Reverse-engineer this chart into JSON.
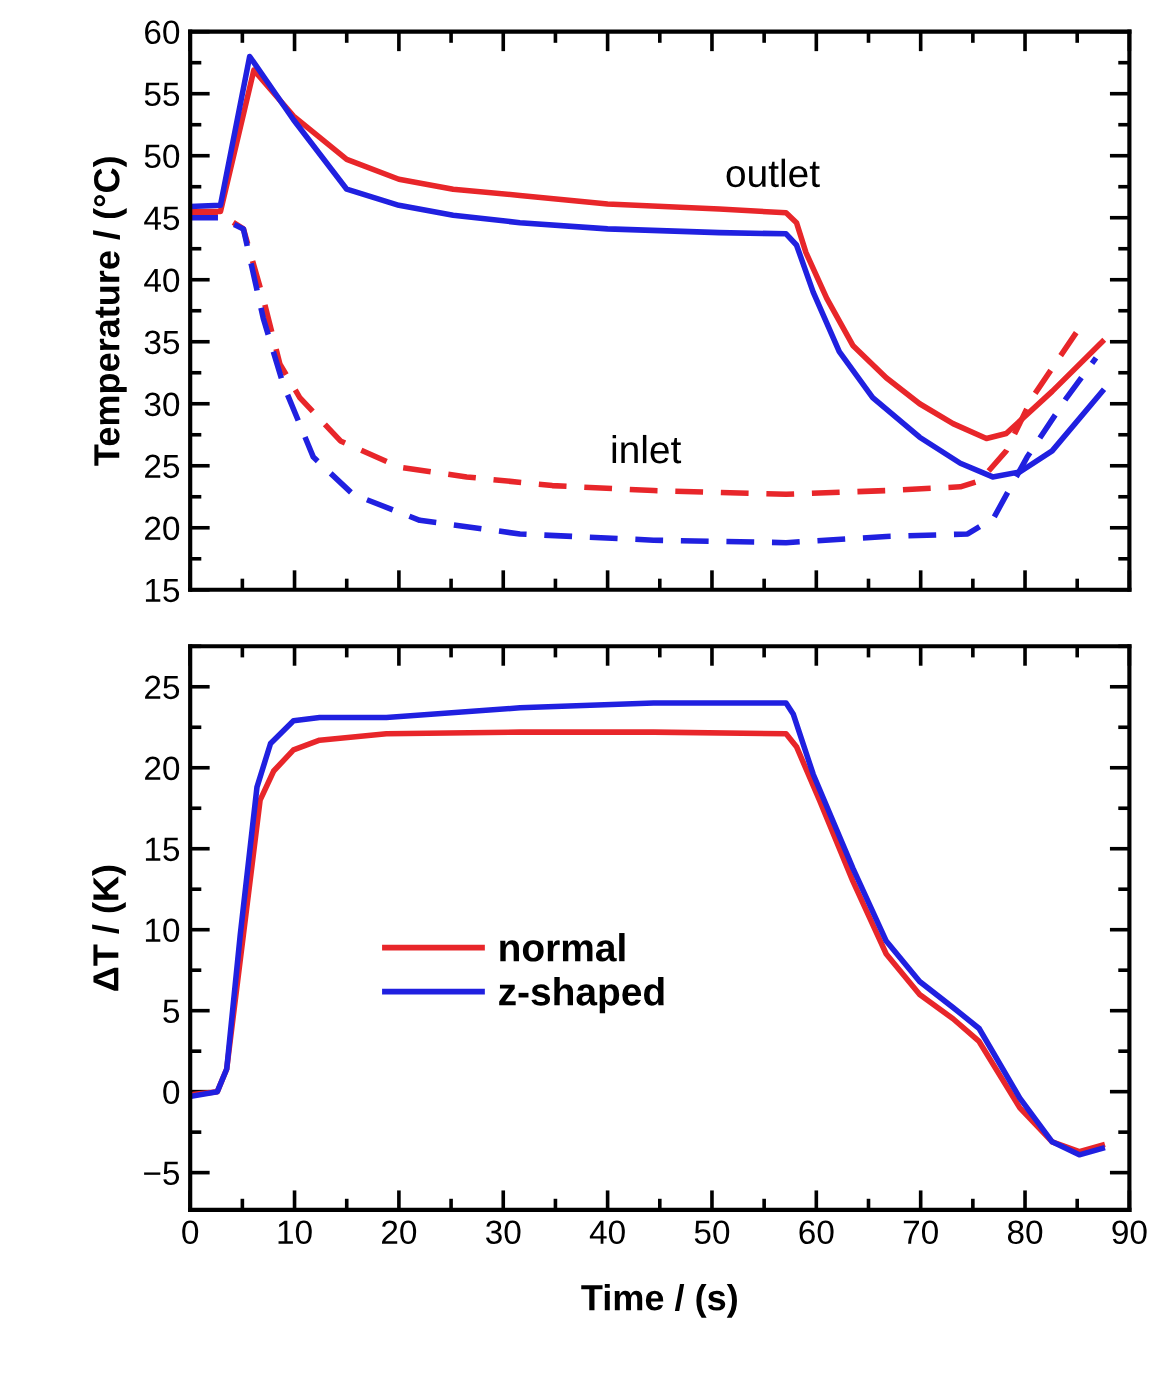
{
  "chart_data": [
    {
      "type": "line",
      "ylabel": "Temperature / (°C)",
      "xlim": [
        0,
        90
      ],
      "ylim": [
        15,
        60
      ],
      "xticks": [
        0,
        10,
        20,
        30,
        40,
        50,
        60,
        70,
        80,
        90
      ],
      "yticks": [
        15,
        20,
        25,
        30,
        35,
        40,
        45,
        50,
        55,
        60
      ],
      "tick_labels": "y",
      "grid": false,
      "legend": false,
      "marker": "none",
      "annotations": [
        "outlet",
        "inlet"
      ],
      "series": [
        {
          "color": "#e8262a",
          "line_style": "solid",
          "x": [
            0,
            2.9,
            6.1,
            9.9,
            15,
            20,
            25.2,
            31.6,
            40,
            50.7,
            57.1,
            58.1,
            59,
            61,
            63.5,
            66.7,
            69.9,
            73.1,
            76.3,
            78.2,
            82.6,
            87.4
          ],
          "values": [
            45.5,
            45.5,
            56.9,
            53.2,
            49.7,
            48.1,
            47.3,
            46.8,
            46.1,
            45.7,
            45.4,
            44.6,
            42.2,
            38.5,
            34.7,
            32.1,
            30,
            28.4,
            27.2,
            27.6,
            31,
            35
          ]
        },
        {
          "color": "#2020e0",
          "line_style": "solid",
          "x": [
            0,
            2.9,
            5.7,
            9.9,
            15,
            20,
            25.2,
            31.6,
            40,
            50.7,
            57.1,
            58.1,
            59.7,
            62.2,
            65.4,
            69.9,
            73.8,
            76.9,
            79.5,
            82.6,
            87.4
          ],
          "values": [
            45.9,
            46,
            58,
            52.9,
            47.3,
            46,
            45.2,
            44.6,
            44.1,
            43.8,
            43.7,
            42.8,
            39,
            34.2,
            30.5,
            27.3,
            25.2,
            24.1,
            24.5,
            26.2,
            31
          ]
        },
        {
          "color": "#e8262a",
          "line_style": "dashed",
          "x": [
            0,
            2.9,
            5.1,
            7,
            8.6,
            10.5,
            14.4,
            20,
            26.5,
            34.7,
            44.4,
            57.1,
            66.7,
            73.8,
            75.7,
            78.2,
            80.7,
            85.2
          ],
          "values": [
            45.4,
            45.3,
            44.1,
            38.5,
            33.2,
            30.5,
            27,
            24.9,
            24.1,
            23.4,
            23,
            22.7,
            23,
            23.3,
            23.8,
            26.2,
            30.5,
            36.1
          ]
        },
        {
          "color": "#2020e0",
          "line_style": "dashed",
          "x": [
            0,
            2.9,
            5.1,
            7,
            8.9,
            11.8,
            15.6,
            22,
            31.6,
            44.4,
            57.1,
            66.7,
            74.5,
            77,
            80.2,
            84,
            86.8
          ],
          "values": [
            45,
            45,
            44.1,
            36.9,
            31.6,
            25.7,
            22.7,
            20.6,
            19.5,
            19,
            18.8,
            19.3,
            19.5,
            20.8,
            25.7,
            30.5,
            33.7
          ]
        }
      ]
    },
    {
      "type": "line",
      "xlabel": "Time / (s)",
      "ylabel": "ΔT / (K)",
      "xlim": [
        0,
        90
      ],
      "ylim": [
        -7.3,
        27.5
      ],
      "xticks": [
        0,
        10,
        20,
        30,
        40,
        50,
        60,
        70,
        80,
        90
      ],
      "yticks": [
        -5,
        0,
        5,
        10,
        15,
        20,
        25
      ],
      "grid": false,
      "legend": "center left",
      "marker": "none",
      "series": [
        {
          "name": "normal",
          "color": "#e8262a",
          "line_style": "solid",
          "x": [
            0,
            2.6,
            3.5,
            5.1,
            6.7,
            8,
            9.9,
            12.4,
            18.8,
            31.6,
            44.4,
            57.1,
            58.1,
            60.3,
            63.5,
            66.7,
            69.9,
            73.1,
            75.6,
            79.5,
            82.6,
            85.2,
            87.4
          ],
          "values": [
            -0.2,
            0,
            1.4,
            9.7,
            18,
            19.8,
            21.1,
            21.7,
            22.1,
            22.2,
            22.2,
            22.1,
            21.3,
            18,
            13,
            8.5,
            6,
            4.5,
            3.1,
            -1,
            -3.1,
            -3.7,
            -3.3
          ]
        },
        {
          "name": "z-shaped",
          "color": "#2020e0",
          "line_style": "solid",
          "x": [
            0,
            2.6,
            3.5,
            4.8,
            6.4,
            7.7,
            9.9,
            12.4,
            18.8,
            31.6,
            44.4,
            57.1,
            57.8,
            59.7,
            63.5,
            66.7,
            69.9,
            73.1,
            75.6,
            79.5,
            82.6,
            85.2,
            87.4
          ],
          "values": [
            -0.3,
            0,
            1.4,
            9.7,
            18.8,
            21.5,
            22.9,
            23.1,
            23.1,
            23.7,
            24,
            24,
            23.3,
            19.6,
            13.8,
            9.3,
            6.8,
            5.2,
            3.9,
            -0.4,
            -3.1,
            -3.9,
            -3.5
          ]
        }
      ]
    }
  ]
}
